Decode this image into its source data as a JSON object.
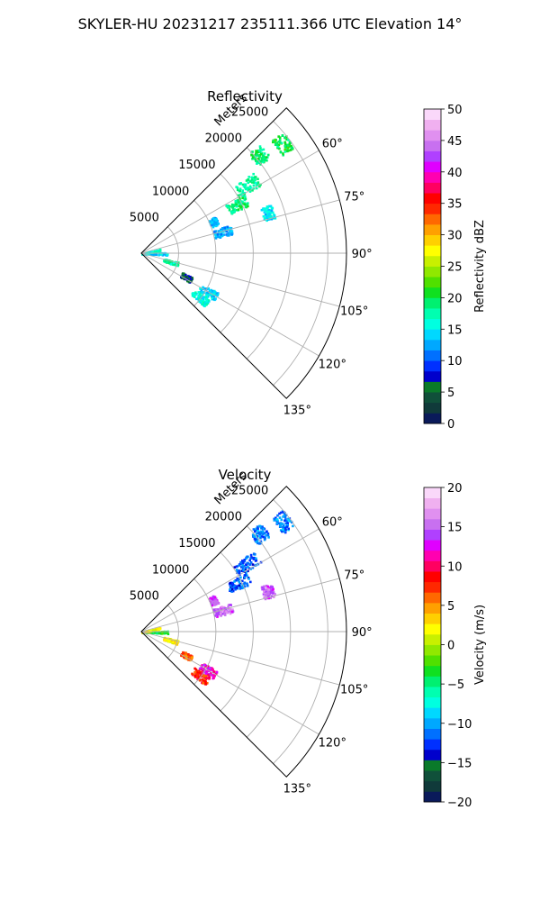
{
  "title": "SKYLER-HU  20231217  235111.366 UTC Elevation 14°",
  "range_unit_label": "Meters",
  "colors": {
    "grid": "#b0b0b0",
    "axis": "#000000"
  },
  "chart_data": [
    {
      "type": "radar-ppi-sector",
      "title": "Reflectivity",
      "theta_range_deg": [
        45,
        135
      ],
      "theta_ticks_deg": [
        60,
        75,
        90,
        105,
        120,
        135
      ],
      "theta_tick_labels": [
        "60°",
        "75°",
        "90°",
        "105°",
        "120°",
        "135°"
      ],
      "r_max_m": 27500,
      "r_ticks_m": [
        5000,
        10000,
        15000,
        20000,
        25000
      ],
      "r_tick_labels": [
        "5000",
        "10000",
        "15000",
        "20000",
        "25000"
      ],
      "grid": true,
      "colorbar": {
        "label": "Reflectivity dBZ",
        "min": 0,
        "max": 50,
        "ticks": [
          0,
          5,
          10,
          15,
          20,
          25,
          30,
          35,
          40,
          45,
          50
        ],
        "tick_labels": [
          "0",
          "5",
          "10",
          "15",
          "20",
          "25",
          "30",
          "35",
          "40",
          "45",
          "50"
        ],
        "colormap": [
          "#0a1a5a",
          "#103a3a",
          "#10503a",
          "#0a7a2a",
          "#0000cc",
          "#0030ff",
          "#0070ff",
          "#00a8ff",
          "#00d8ff",
          "#00ffe0",
          "#00ffb0",
          "#00f070",
          "#10e020",
          "#50e000",
          "#90e800",
          "#c8f000",
          "#ffff00",
          "#ffd000",
          "#ffa000",
          "#ff6800",
          "#ff2800",
          "#ff0000",
          "#ff0060",
          "#ff00b0",
          "#e000ff",
          "#b040ff",
          "#c870f0",
          "#e090f0",
          "#f0b0f0",
          "#fad8fa"
        ]
      },
      "echo_clusters": [
        {
          "az_deg": 50,
          "range_m": [
            19500,
            21500
          ],
          "value": 19
        },
        {
          "az_deg": 52,
          "range_m": [
            23000,
            25000
          ],
          "value": 20
        },
        {
          "az_deg": 57,
          "range_m": [
            15000,
            18500
          ],
          "value": 18
        },
        {
          "az_deg": 63,
          "range_m": [
            13000,
            16000
          ],
          "value": 19
        },
        {
          "az_deg": 72,
          "range_m": [
            17000,
            18500
          ],
          "value": 15
        },
        {
          "az_deg": 75,
          "range_m": [
            10000,
            12500
          ],
          "value": 13
        },
        {
          "az_deg": 66,
          "range_m": [
            10000,
            11000
          ],
          "value": 13
        },
        {
          "az_deg": 90,
          "range_m": [
            0,
            3500
          ],
          "value": 14
        },
        {
          "az_deg": 78,
          "range_m": [
            0,
            2500
          ],
          "value": 16
        },
        {
          "az_deg": 106,
          "range_m": [
            3000,
            5000
          ],
          "value": 18
        },
        {
          "az_deg": 118,
          "range_m": [
            6000,
            7500
          ],
          "value": 6
        },
        {
          "az_deg": 120,
          "range_m": [
            9000,
            11500
          ],
          "value": 14
        },
        {
          "az_deg": 127,
          "range_m": [
            8500,
            11000
          ],
          "value": 16
        }
      ]
    },
    {
      "type": "radar-ppi-sector",
      "title": "Velocity",
      "theta_range_deg": [
        45,
        135
      ],
      "theta_ticks_deg": [
        60,
        75,
        90,
        105,
        120,
        135
      ],
      "theta_tick_labels": [
        "60°",
        "75°",
        "90°",
        "105°",
        "120°",
        "135°"
      ],
      "r_max_m": 27500,
      "r_ticks_m": [
        5000,
        10000,
        15000,
        20000,
        25000
      ],
      "r_tick_labels": [
        "5000",
        "10000",
        "15000",
        "20000",
        "25000"
      ],
      "grid": true,
      "colorbar": {
        "label": "Velocity (m/s)",
        "min": -20,
        "max": 20,
        "ticks": [
          -20,
          -15,
          -10,
          -5,
          0,
          5,
          10,
          15,
          20
        ],
        "tick_labels": [
          "−20",
          "−15",
          "−10",
          "−5",
          "0",
          "5",
          "10",
          "15",
          "20"
        ],
        "colormap": [
          "#0a1a5a",
          "#103a3a",
          "#10503a",
          "#0a7a2a",
          "#0000cc",
          "#0030ff",
          "#0070ff",
          "#00a8ff",
          "#00d8ff",
          "#00ffe0",
          "#00ffb0",
          "#00f070",
          "#10e020",
          "#50e000",
          "#90e800",
          "#c8f000",
          "#ffff00",
          "#ffd000",
          "#ffa000",
          "#ff6800",
          "#ff2800",
          "#ff0000",
          "#ff0060",
          "#ff00b0",
          "#e000ff",
          "#b040ff",
          "#c870f0",
          "#e090f0",
          "#f0b0f0",
          "#fad8fa"
        ]
      },
      "echo_clusters": [
        {
          "az_deg": 50,
          "range_m": [
            19500,
            21500
          ],
          "value": -11
        },
        {
          "az_deg": 52,
          "range_m": [
            23000,
            25000
          ],
          "value": -11
        },
        {
          "az_deg": 57,
          "range_m": [
            15000,
            18500
          ],
          "value": -12
        },
        {
          "az_deg": 63,
          "range_m": [
            13000,
            16000
          ],
          "value": -12
        },
        {
          "az_deg": 72,
          "range_m": [
            17000,
            18500
          ],
          "value": 15
        },
        {
          "az_deg": 75,
          "range_m": [
            10000,
            12500
          ],
          "value": 15
        },
        {
          "az_deg": 66,
          "range_m": [
            10000,
            11000
          ],
          "value": 14
        },
        {
          "az_deg": 90,
          "range_m": [
            0,
            3500
          ],
          "value": -3
        },
        {
          "az_deg": 78,
          "range_m": [
            0,
            2500
          ],
          "value": 2
        },
        {
          "az_deg": 106,
          "range_m": [
            3000,
            5000
          ],
          "value": 2
        },
        {
          "az_deg": 118,
          "range_m": [
            6000,
            7500
          ],
          "value": 6
        },
        {
          "az_deg": 120,
          "range_m": [
            9000,
            11500
          ],
          "value": 12
        },
        {
          "az_deg": 127,
          "range_m": [
            8500,
            11000
          ],
          "value": 8
        }
      ]
    }
  ]
}
